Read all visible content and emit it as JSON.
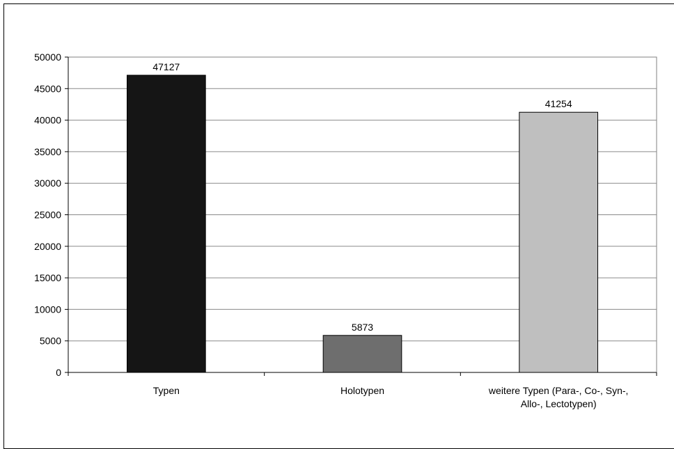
{
  "chart_data": {
    "type": "bar",
    "categories": [
      [
        "Typen"
      ],
      [
        "Holotypen"
      ],
      [
        "weitere Typen (Para-, Co-, Syn-,",
        "Allo-, Lectotypen)"
      ]
    ],
    "values": [
      47127,
      5873,
      41254
    ],
    "data_labels": [
      "47127",
      "5873",
      "41254"
    ],
    "bar_colors": [
      "#151515",
      "#6e6e6e",
      "#bfbfbf"
    ],
    "ylim": [
      0,
      50000
    ],
    "yticks": [
      0,
      5000,
      10000,
      15000,
      20000,
      25000,
      30000,
      35000,
      40000,
      45000,
      50000
    ],
    "ytick_labels": [
      "0",
      "5000",
      "10000",
      "15000",
      "20000",
      "25000",
      "30000",
      "35000",
      "40000",
      "45000",
      "50000"
    ],
    "grid": true,
    "title": "",
    "xlabel": "",
    "ylabel": ""
  }
}
